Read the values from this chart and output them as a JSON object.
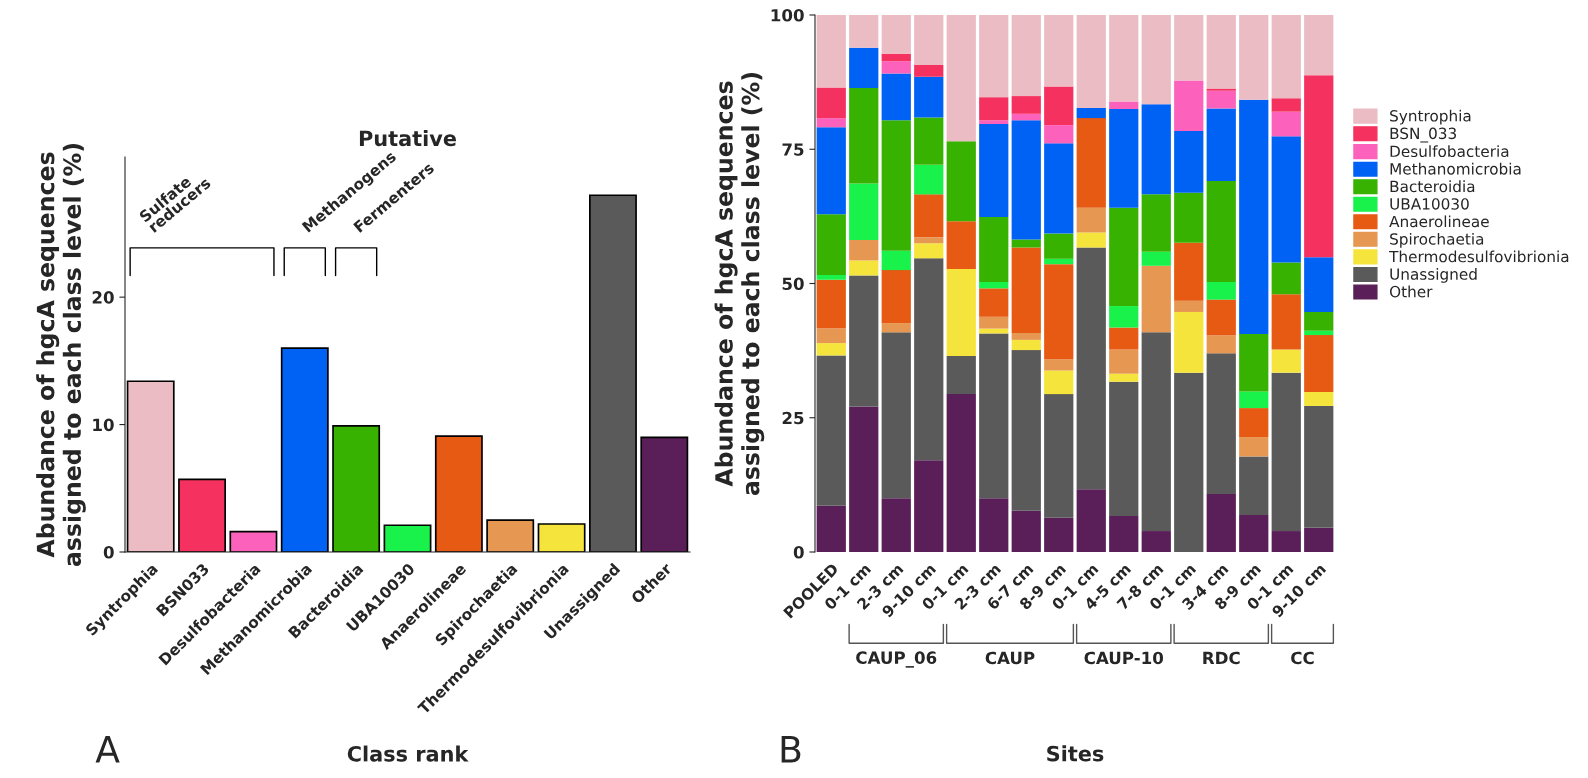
{
  "chart_data": [
    {
      "type": "bar",
      "title": "Putative",
      "xlabel": "Class rank",
      "ylabel": "Abundance of hgcA sequences\nassigned to each class level (%)",
      "categories": [
        "Syntrophia",
        "BSN033",
        "Desulfobacteria",
        "Methanomicrobia",
        "Bacteroidia",
        "UBA10030",
        "Anaerolineae",
        "Spirochaetia",
        "Thermodesulfovibrionia",
        "Unassigned",
        "Other"
      ],
      "values": [
        13.4,
        5.7,
        1.6,
        16.0,
        9.9,
        2.1,
        9.1,
        2.5,
        2.2,
        28.0,
        9.0
      ],
      "colors": [
        "#ebbcc4",
        "#f5325f",
        "#fc62bb",
        "#0062f5",
        "#38b200",
        "#18f24a",
        "#e65a13",
        "#e69852",
        "#f5e43b",
        "#5a5a5a",
        "#5a1e58"
      ],
      "ylim": [
        0,
        31
      ],
      "yticks": [
        0,
        10,
        20
      ],
      "annotations": [
        "Sulfate\nreducers",
        "Methanogens",
        "Fermenters",
        "A"
      ]
    },
    {
      "type": "bar",
      "stacked": true,
      "xlabel": "Sites",
      "ylabel": "Abundance of hgcA sequences\nassigned to each class level (%)",
      "legend": "right",
      "categories": [
        "POOLED",
        "0-1 cm",
        "2-3 cm",
        "9-10 cm",
        "0-1 cm",
        "2-3 cm",
        "6-7 cm",
        "8-9 cm",
        "0-1 cm",
        "4-5 cm",
        "7-8 cm",
        "0-1 cm",
        "3-4 cm",
        "8-9 cm",
        "0-1 cm",
        "9-10 cm"
      ],
      "ylim": [
        0,
        100
      ],
      "yticks": [
        0,
        25,
        50,
        75,
        100
      ],
      "series": [
        {
          "name": "Other",
          "color": "#5a1e58",
          "values": [
            8.6,
            27.1,
            10.0,
            17.1,
            29.4,
            10.0,
            7.7,
            6.4,
            11.7,
            6.7,
            3.9,
            0,
            10.8,
            6.9,
            3.9,
            4.5
          ]
        },
        {
          "name": "Unassigned",
          "color": "#5a5a5a",
          "values": [
            28.0,
            24.4,
            30.9,
            37.6,
            7.1,
            30.7,
            29.9,
            23.0,
            45.0,
            25.0,
            37.0,
            33.4,
            26.2,
            10.9,
            29.5,
            22.7
          ]
        },
        {
          "name": "Thermodesulfovibrionia",
          "color": "#f5e43b",
          "values": [
            2.3,
            2.8,
            0,
            2.8,
            16.2,
            0.9,
            1.9,
            4.4,
            2.8,
            1.5,
            0,
            11.3,
            0,
            0,
            4.3,
            2.6
          ]
        },
        {
          "name": "Spirochaetia",
          "color": "#e69852",
          "values": [
            2.7,
            3.8,
            1.7,
            1.1,
            0,
            2.2,
            1.3,
            2.1,
            4.6,
            4.5,
            12.4,
            2.1,
            3.3,
            3.6,
            0,
            0
          ]
        },
        {
          "name": "Anaerolineae",
          "color": "#e65a13",
          "values": [
            9.1,
            0,
            9.9,
            8.0,
            8.9,
            5.3,
            15.9,
            17.7,
            16.7,
            4.1,
            0,
            10.8,
            6.7,
            5.4,
            10.3,
            10.6
          ]
        },
        {
          "name": "UBA10030",
          "color": "#18f24a",
          "values": [
            0.9,
            10.5,
            3.6,
            5.5,
            0,
            1.2,
            0,
            1.0,
            0,
            4.0,
            2.6,
            0,
            3.3,
            3.1,
            0,
            0.8
          ]
        },
        {
          "name": "Bacteroidia",
          "color": "#38b200",
          "values": [
            11.3,
            17.8,
            24.3,
            8.8,
            14.9,
            12.1,
            1.5,
            4.7,
            0,
            18.3,
            10.7,
            9.3,
            18.8,
            10.7,
            5.9,
            3.5
          ]
        },
        {
          "name": "Methanomicrobia",
          "color": "#0062f5",
          "values": [
            16.2,
            7.5,
            8.7,
            7.6,
            0,
            17.3,
            22.2,
            16.8,
            1.9,
            18.4,
            16.8,
            11.5,
            13.5,
            43.6,
            23.5,
            10.2
          ]
        },
        {
          "name": "Desulfobacteria",
          "color": "#fc62bb",
          "values": [
            1.7,
            0,
            2.3,
            0,
            0,
            0.7,
            1.2,
            3.4,
            0,
            1.4,
            0,
            9.4,
            3.3,
            0,
            4.6,
            0
          ]
        },
        {
          "name": "BSN_033",
          "color": "#f5325f",
          "values": [
            5.7,
            0,
            1.4,
            2.2,
            0,
            4.3,
            3.3,
            7.2,
            0,
            0,
            0,
            0,
            0.4,
            0,
            2.5,
            33.9
          ]
        },
        {
          "name": "Syntrophia",
          "color": "#ebbcc4",
          "values": [
            13.5,
            6.1,
            7.2,
            9.3,
            23.5,
            15.3,
            15.1,
            13.3,
            17.3,
            16.1,
            16.6,
            12.2,
            13.7,
            15.8,
            15.5,
            11.2
          ]
        }
      ],
      "annotations": [
        "CAUP_06",
        "CAUP",
        "CAUP-10",
        "RDC",
        "CC",
        "B"
      ]
    }
  ]
}
